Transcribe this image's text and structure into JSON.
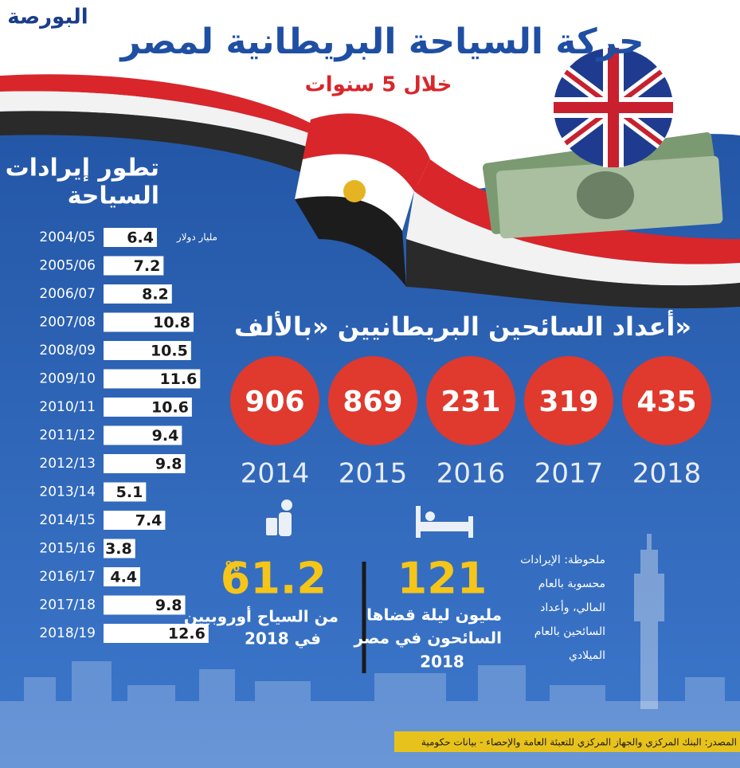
{
  "header": {
    "logo": "البورصة",
    "title": "حركة السياحة البريطانية لمصر",
    "subtitle": "خلال 5 سنوات"
  },
  "chart_data": {
    "type": "hbar",
    "title": [
      "تطور إيرادات",
      "السياحة"
    ],
    "unit": "مليار دولار",
    "categories": [
      "2004/05",
      "2005/06",
      "2006/07",
      "2007/08",
      "2008/09",
      "2009/10",
      "2010/11",
      "2011/12",
      "2012/13",
      "2013/14",
      "2014/15",
      "2015/16",
      "2016/17",
      "2017/18",
      "2018/19"
    ],
    "values": [
      6.4,
      7.2,
      8.2,
      10.8,
      10.5,
      11.6,
      10.6,
      9.4,
      9.8,
      5.1,
      7.4,
      3.8,
      4.4,
      9.8,
      12.6
    ],
    "color": "#ffffff",
    "xlim": [
      0,
      13
    ]
  },
  "tourists": {
    "title": "أعداد السائحين البريطانيين «بالألف»",
    "years": [
      "2014",
      "2015",
      "2016",
      "2017",
      "2018"
    ],
    "values": [
      906,
      869,
      231,
      319,
      435
    ],
    "color": "#e0392d"
  },
  "stats": [
    {
      "value": 61.2,
      "unit": "%",
      "lines": [
        "من السياح أوروبيين",
        "في 2018"
      ]
    },
    {
      "value": 121,
      "lines": [
        "مليون ليلة قضاها",
        "السائحون في مصر",
        "2018"
      ]
    }
  ],
  "note": [
    "ملحوظة: الإيرادات",
    "محسوبة بالعام",
    "المالي، وأعداد",
    "السائحين بالعام",
    "الميلادي"
  ],
  "source": "المصدر: البنك المركزي والجهاز المركزي للتعبئة العامة والإحصاء - بيانات حكومية"
}
